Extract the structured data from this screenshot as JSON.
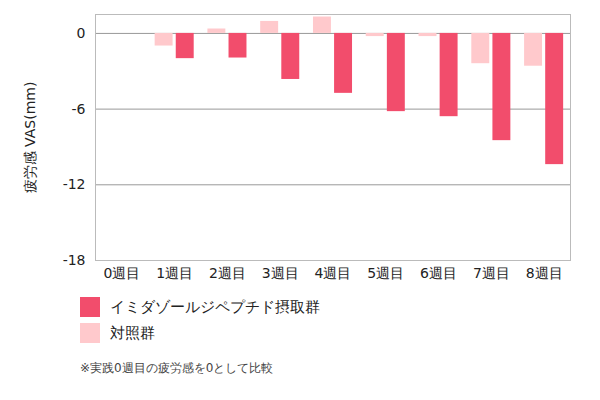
{
  "chart_data": {
    "type": "bar",
    "y_label": "疲労感 VAS(mm)",
    "caption": "※実践0週目の疲労感を0として比較",
    "categories": [
      "0週目",
      "1週目",
      "2週目",
      "3週目",
      "4週目",
      "5週目",
      "6週目",
      "7週目",
      "8週目"
    ],
    "series": [
      {
        "name": "イミダゾールジペプチド摂取群",
        "color": "#f24d6c",
        "values": [
          0,
          -2.0,
          -1.95,
          -3.65,
          -4.75,
          -6.2,
          -6.6,
          -8.5,
          -10.4
        ]
      },
      {
        "name": "対照群",
        "color": "#ffc9cc",
        "values": [
          0,
          -1.0,
          0.35,
          0.95,
          1.3,
          -0.25,
          -0.25,
          -2.4,
          -2.6
        ]
      }
    ],
    "ylim": [
      -18,
      1.5
    ],
    "yticks": [
      0,
      -6,
      -12,
      -18
    ],
    "grid": true,
    "legend": "bottom-left"
  }
}
